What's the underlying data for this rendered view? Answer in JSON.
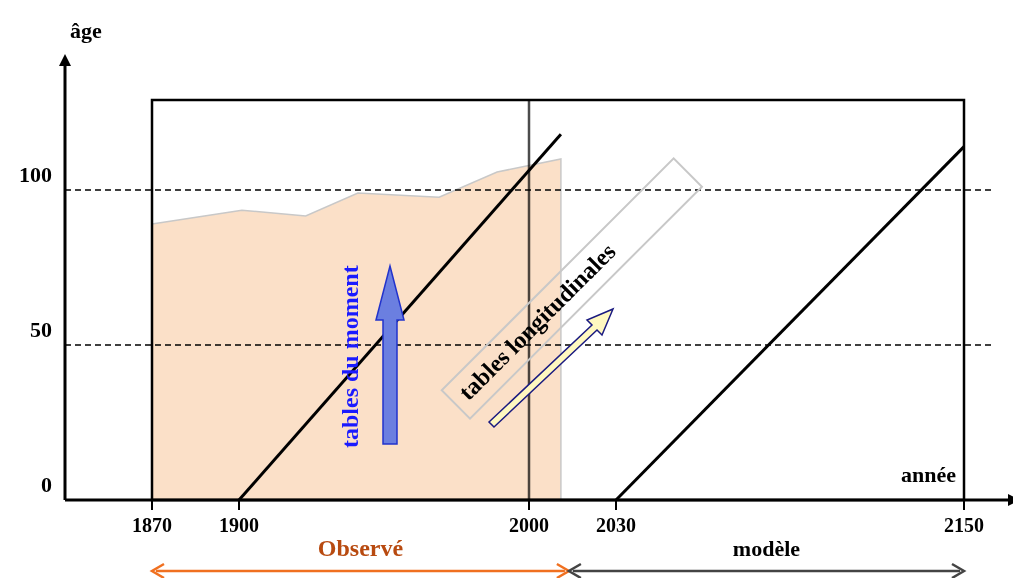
{
  "chart_data": {
    "type": "line",
    "xlabel": "année",
    "ylabel": "âge",
    "xlim": [
      1840,
      2160
    ],
    "ylim": [
      0,
      140
    ],
    "xticks": [
      1870,
      1900,
      2000,
      2030,
      2150
    ],
    "yticks": [
      0,
      50,
      100
    ],
    "series": [
      {
        "type": "area",
        "color": "#fbe0c8",
        "x": [
          1870,
          1901,
          1923,
          1941,
          1969,
          1989,
          2011
        ],
        "values": [
          89,
          93.5,
          91.6,
          99,
          97.7,
          105.8,
          110
        ]
      },
      {
        "color": "#000000",
        "x": [
          1900,
          2011
        ],
        "values": [
          0,
          118
        ]
      },
      {
        "color": "#000000",
        "x": [
          2030,
          2150
        ],
        "values": [
          0,
          114
        ]
      }
    ],
    "ref_lines": [
      {
        "axis": "y",
        "value": 50,
        "line_style": "dashed",
        "color": "#000000"
      },
      {
        "axis": "y",
        "value": 100,
        "line_style": "dashed",
        "color": "#000000"
      },
      {
        "axis": "x",
        "value": 2000,
        "line_style": "solid",
        "color": "#000000"
      }
    ],
    "annotations": [
      "tables du moment",
      "tables longitudinales",
      "Observé",
      "modèle"
    ]
  }
}
